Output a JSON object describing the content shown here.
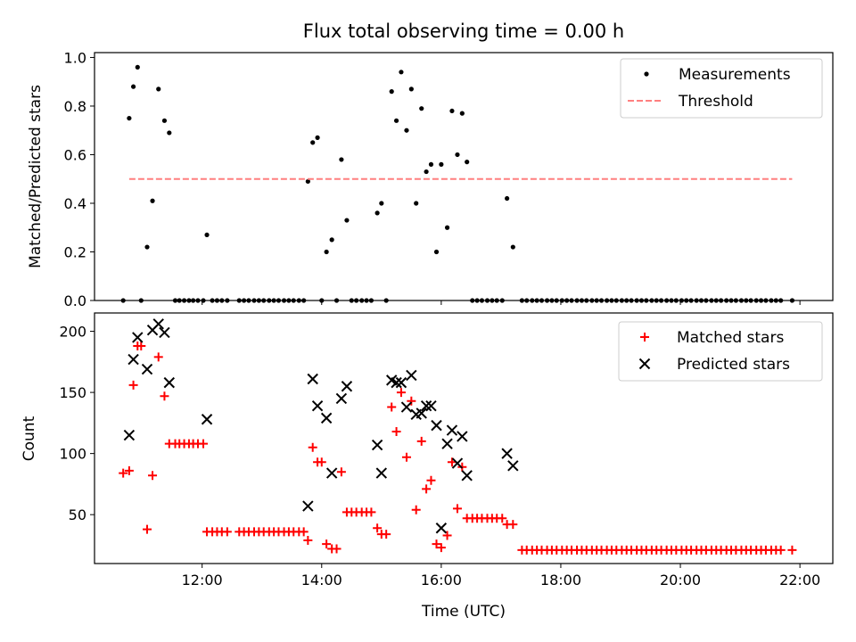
{
  "chart_data": [
    {
      "type": "scatter",
      "title": "Flux total observing time = 0.00 h",
      "xlabel": "",
      "ylabel": "Matched/Predicted stars",
      "xlim": [
        10.2,
        22.55
      ],
      "ylim": [
        0,
        1.02
      ],
      "yticks": [
        0.0,
        0.2,
        0.4,
        0.6,
        0.8,
        1.0
      ],
      "ytick_labels": [
        "0.0",
        "0.2",
        "0.4",
        "0.6",
        "0.8",
        "1.0"
      ],
      "legend_position": "top-right",
      "series": [
        {
          "name": "Measurements",
          "color": "#000000",
          "marker": "dot",
          "x": [
            10.68,
            10.78,
            10.85,
            10.92,
            10.98,
            11.08,
            11.17,
            11.27,
            11.37,
            11.45,
            11.55,
            11.62,
            11.7,
            11.78,
            11.85,
            11.93,
            12.02,
            12.08,
            12.17,
            12.25,
            12.33,
            12.42,
            12.62,
            12.7,
            12.78,
            12.87,
            12.95,
            13.03,
            13.12,
            13.2,
            13.28,
            13.37,
            13.45,
            13.53,
            13.62,
            13.7,
            13.77,
            13.85,
            13.93,
            14.0,
            14.08,
            14.17,
            14.25,
            14.33,
            14.42,
            14.5,
            14.58,
            14.67,
            14.75,
            14.83,
            14.93,
            15.0,
            15.08,
            15.17,
            15.25,
            15.33,
            15.42,
            15.5,
            15.58,
            15.67,
            15.75,
            15.83,
            15.92,
            16.0,
            16.1,
            16.18,
            16.27,
            16.35,
            16.43,
            16.52,
            16.6,
            16.68,
            16.77,
            16.85,
            16.93,
            17.02,
            17.1,
            17.2,
            17.35,
            17.43,
            17.52,
            17.6,
            17.68,
            17.77,
            17.85,
            17.93,
            18.02,
            18.1,
            18.18,
            18.27,
            18.35,
            18.43,
            18.52,
            18.6,
            18.68,
            18.77,
            18.85,
            18.93,
            19.02,
            19.1,
            19.18,
            19.27,
            19.35,
            19.43,
            19.52,
            19.6,
            19.68,
            19.77,
            19.85,
            19.93,
            20.02,
            20.1,
            20.18,
            20.27,
            20.35,
            20.43,
            20.52,
            20.6,
            20.68,
            20.77,
            20.85,
            20.93,
            21.02,
            21.1,
            21.18,
            21.27,
            21.35,
            21.43,
            21.52,
            21.6,
            21.68,
            21.87
          ],
          "y": [
            0.0,
            0.75,
            0.88,
            0.96,
            0.0,
            0.22,
            0.41,
            0.87,
            0.74,
            0.69,
            0.0,
            0.0,
            0.0,
            0.0,
            0.0,
            0.0,
            0.0,
            0.27,
            0.0,
            0.0,
            0.0,
            0.0,
            0.0,
            0.0,
            0.0,
            0.0,
            0.0,
            0.0,
            0.0,
            0.0,
            0.0,
            0.0,
            0.0,
            0.0,
            0.0,
            0.0,
            0.49,
            0.65,
            0.67,
            0.0,
            0.2,
            0.25,
            0.0,
            0.58,
            0.33,
            0.0,
            0.0,
            0.0,
            0.0,
            0.0,
            0.36,
            0.4,
            0.0,
            0.86,
            0.74,
            0.94,
            0.7,
            0.87,
            0.4,
            0.79,
            0.53,
            0.56,
            0.2,
            0.56,
            0.3,
            0.78,
            0.6,
            0.77,
            0.57,
            0.0,
            0.0,
            0.0,
            0.0,
            0.0,
            0.0,
            0.0,
            0.42,
            0.22,
            0.0,
            0.0,
            0.0,
            0.0,
            0.0,
            0.0,
            0.0,
            0.0,
            0.0,
            0.0,
            0.0,
            0.0,
            0.0,
            0.0,
            0.0,
            0.0,
            0.0,
            0.0,
            0.0,
            0.0,
            0.0,
            0.0,
            0.0,
            0.0,
            0.0,
            0.0,
            0.0,
            0.0,
            0.0,
            0.0,
            0.0,
            0.0,
            0.0,
            0.0,
            0.0,
            0.0,
            0.0,
            0.0,
            0.0,
            0.0,
            0.0,
            0.0,
            0.0,
            0.0,
            0.0,
            0.0,
            0.0,
            0.0,
            0.0,
            0.0,
            0.0,
            0.0,
            0.0,
            0.0
          ]
        },
        {
          "name": "Threshold",
          "color": "#ff7f7f",
          "style": "dashed-line",
          "x": [
            10.78,
            21.87
          ],
          "y": [
            0.5,
            0.5
          ]
        }
      ]
    },
    {
      "type": "scatter",
      "title": "",
      "xlabel": "Time (UTC)",
      "ylabel": "Count",
      "xlim": [
        10.2,
        22.55
      ],
      "ylim": [
        10,
        215
      ],
      "xticks": [
        12,
        14,
        16,
        18,
        20,
        22
      ],
      "xtick_labels": [
        "12:00",
        "14:00",
        "16:00",
        "18:00",
        "20:00",
        "22:00"
      ],
      "yticks": [
        50,
        100,
        150,
        200
      ],
      "ytick_labels": [
        "50",
        "100",
        "150",
        "200"
      ],
      "legend_position": "top-right",
      "series": [
        {
          "name": "Matched stars",
          "color": "#ff0000",
          "marker": "plus",
          "x": [
            10.68,
            10.78,
            10.85,
            10.92,
            10.98,
            11.08,
            11.17,
            11.27,
            11.37,
            11.45,
            11.55,
            11.62,
            11.7,
            11.78,
            11.85,
            11.93,
            12.02,
            12.08,
            12.17,
            12.25,
            12.33,
            12.42,
            12.62,
            12.7,
            12.78,
            12.87,
            12.95,
            13.03,
            13.12,
            13.2,
            13.28,
            13.37,
            13.45,
            13.53,
            13.62,
            13.7,
            13.77,
            13.85,
            13.93,
            14.0,
            14.08,
            14.17,
            14.25,
            14.33,
            14.42,
            14.5,
            14.58,
            14.67,
            14.75,
            14.83,
            14.93,
            15.0,
            15.08,
            15.17,
            15.25,
            15.33,
            15.42,
            15.5,
            15.58,
            15.67,
            15.75,
            15.83,
            15.92,
            16.0,
            16.1,
            16.18,
            16.27,
            16.35,
            16.43,
            16.52,
            16.6,
            16.68,
            16.77,
            16.85,
            16.93,
            17.02,
            17.1,
            17.2,
            17.35,
            17.43,
            17.52,
            17.6,
            17.68,
            17.77,
            17.85,
            17.93,
            18.02,
            18.1,
            18.18,
            18.27,
            18.35,
            18.43,
            18.52,
            18.6,
            18.68,
            18.77,
            18.85,
            18.93,
            19.02,
            19.1,
            19.18,
            19.27,
            19.35,
            19.43,
            19.52,
            19.6,
            19.68,
            19.77,
            19.85,
            19.93,
            20.02,
            20.1,
            20.18,
            20.27,
            20.35,
            20.43,
            20.52,
            20.6,
            20.68,
            20.77,
            20.85,
            20.93,
            21.02,
            21.1,
            21.18,
            21.27,
            21.35,
            21.43,
            21.52,
            21.6,
            21.68,
            21.87
          ],
          "y": [
            84,
            86,
            156,
            188,
            188,
            38,
            82,
            179,
            147,
            108,
            108,
            108,
            108,
            108,
            108,
            108,
            108,
            36,
            36,
            36,
            36,
            36,
            36,
            36,
            36,
            36,
            36,
            36,
            36,
            36,
            36,
            36,
            36,
            36,
            36,
            36,
            29,
            105,
            93,
            93,
            26,
            22,
            22,
            85,
            52,
            52,
            52,
            52,
            52,
            52,
            39,
            34,
            34,
            138,
            118,
            150,
            97,
            143,
            54,
            110,
            71,
            78,
            26,
            23,
            33,
            93,
            55,
            89,
            47,
            47,
            47,
            47,
            47,
            47,
            47,
            47,
            42,
            42,
            21,
            21,
            21,
            21,
            21,
            21,
            21,
            21,
            21,
            21,
            21,
            21,
            21,
            21,
            21,
            21,
            21,
            21,
            21,
            21,
            21,
            21,
            21,
            21,
            21,
            21,
            21,
            21,
            21,
            21,
            21,
            21,
            21,
            21,
            21,
            21,
            21,
            21,
            21,
            21,
            21,
            21,
            21,
            21,
            21,
            21,
            21,
            21,
            21,
            21,
            21,
            21,
            21,
            21
          ]
        },
        {
          "name": "Predicted stars",
          "color": "#000000",
          "marker": "x",
          "x": [
            10.78,
            10.85,
            10.92,
            11.08,
            11.17,
            11.27,
            11.37,
            11.45,
            12.08,
            13.77,
            13.85,
            13.93,
            14.08,
            14.17,
            14.33,
            14.42,
            14.93,
            15.0,
            15.17,
            15.25,
            15.33,
            15.42,
            15.5,
            15.58,
            15.67,
            15.75,
            15.83,
            15.92,
            16.0,
            16.1,
            16.18,
            16.27,
            16.35,
            16.43,
            17.1,
            17.2
          ],
          "y": [
            115,
            177,
            195,
            169,
            201,
            206,
            199,
            158,
            128,
            57,
            161,
            139,
            129,
            84,
            145,
            155,
            107,
            84,
            160,
            158,
            158,
            138,
            164,
            132,
            133,
            139,
            139,
            123,
            39,
            108,
            119,
            92,
            114,
            82,
            100,
            90
          ]
        }
      ]
    }
  ]
}
